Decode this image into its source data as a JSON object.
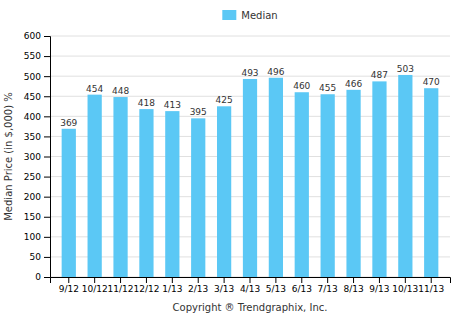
{
  "chart_data": {
    "type": "bar",
    "categories": [
      "9/12",
      "10/12",
      "11/12",
      "12/12",
      "1/13",
      "2/13",
      "3/13",
      "4/13",
      "5/13",
      "6/13",
      "7/13",
      "8/13",
      "9/13",
      "10/13",
      "11/13"
    ],
    "series": [
      {
        "name": "Median",
        "color": "#5BC8F5",
        "values": [
          369,
          454,
          448,
          418,
          413,
          395,
          425,
          493,
          496,
          460,
          455,
          466,
          487,
          503,
          470
        ]
      }
    ],
    "xlabel": "Copyright ® Trendgraphix, Inc.",
    "ylabel": "Median Price (in $,000) %",
    "ylim": [
      0,
      600
    ],
    "yticks": [
      0,
      50,
      100,
      150,
      200,
      250,
      300,
      350,
      400,
      450,
      500,
      550,
      600
    ],
    "grid": true,
    "legend": "top",
    "data_labels": true
  }
}
